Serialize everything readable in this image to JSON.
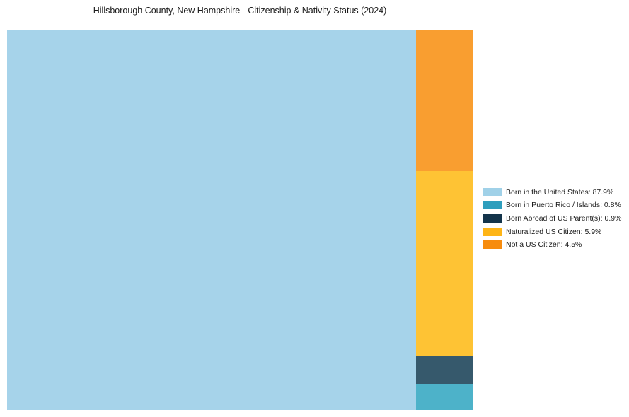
{
  "title": "Hillsborough County, New Hampshire - Citizenship & Nativity Status (2024)",
  "chart_data": {
    "type": "treemap",
    "title": "Hillsborough County, New Hampshire - Citizenship & Nativity Status (2024)",
    "legend_position": "right",
    "total_percent": 100.0,
    "layout_note": "Largest category fills full height on left; remaining categories stacked top-to-bottom in right column in order: Not a US Citizen, Naturalized US Citizen, Born Abroad of US Parent(s), Born in Puerto Rico / Islands",
    "items": [
      {
        "label": "Born in the United States",
        "value": 87.9,
        "legend_label": "Born in the United States: 87.9%",
        "block_color": "#a6d3ea",
        "legend_color": "#a0d1e8"
      },
      {
        "label": "Born in Puerto Rico / Islands",
        "value": 0.8,
        "legend_label": "Born in Puerto Rico / Islands: 0.8%",
        "block_color": "#4db2c9",
        "legend_color": "#2e9ebd"
      },
      {
        "label": "Born Abroad of US Parent(s)",
        "value": 0.9,
        "legend_label": "Born Abroad of US Parent(s): 0.9%",
        "block_color": "#36596c",
        "legend_color": "#14344b"
      },
      {
        "label": "Naturalized US Citizen",
        "value": 5.9,
        "legend_label": "Naturalized US Citizen: 5.9%",
        "block_color": "#fec334",
        "legend_color": "#feb517"
      },
      {
        "label": "Not a US Citizen",
        "value": 4.5,
        "legend_label": "Not a US Citizen: 4.5%",
        "block_color": "#f99e30",
        "legend_color": "#f78c0e"
      }
    ]
  }
}
